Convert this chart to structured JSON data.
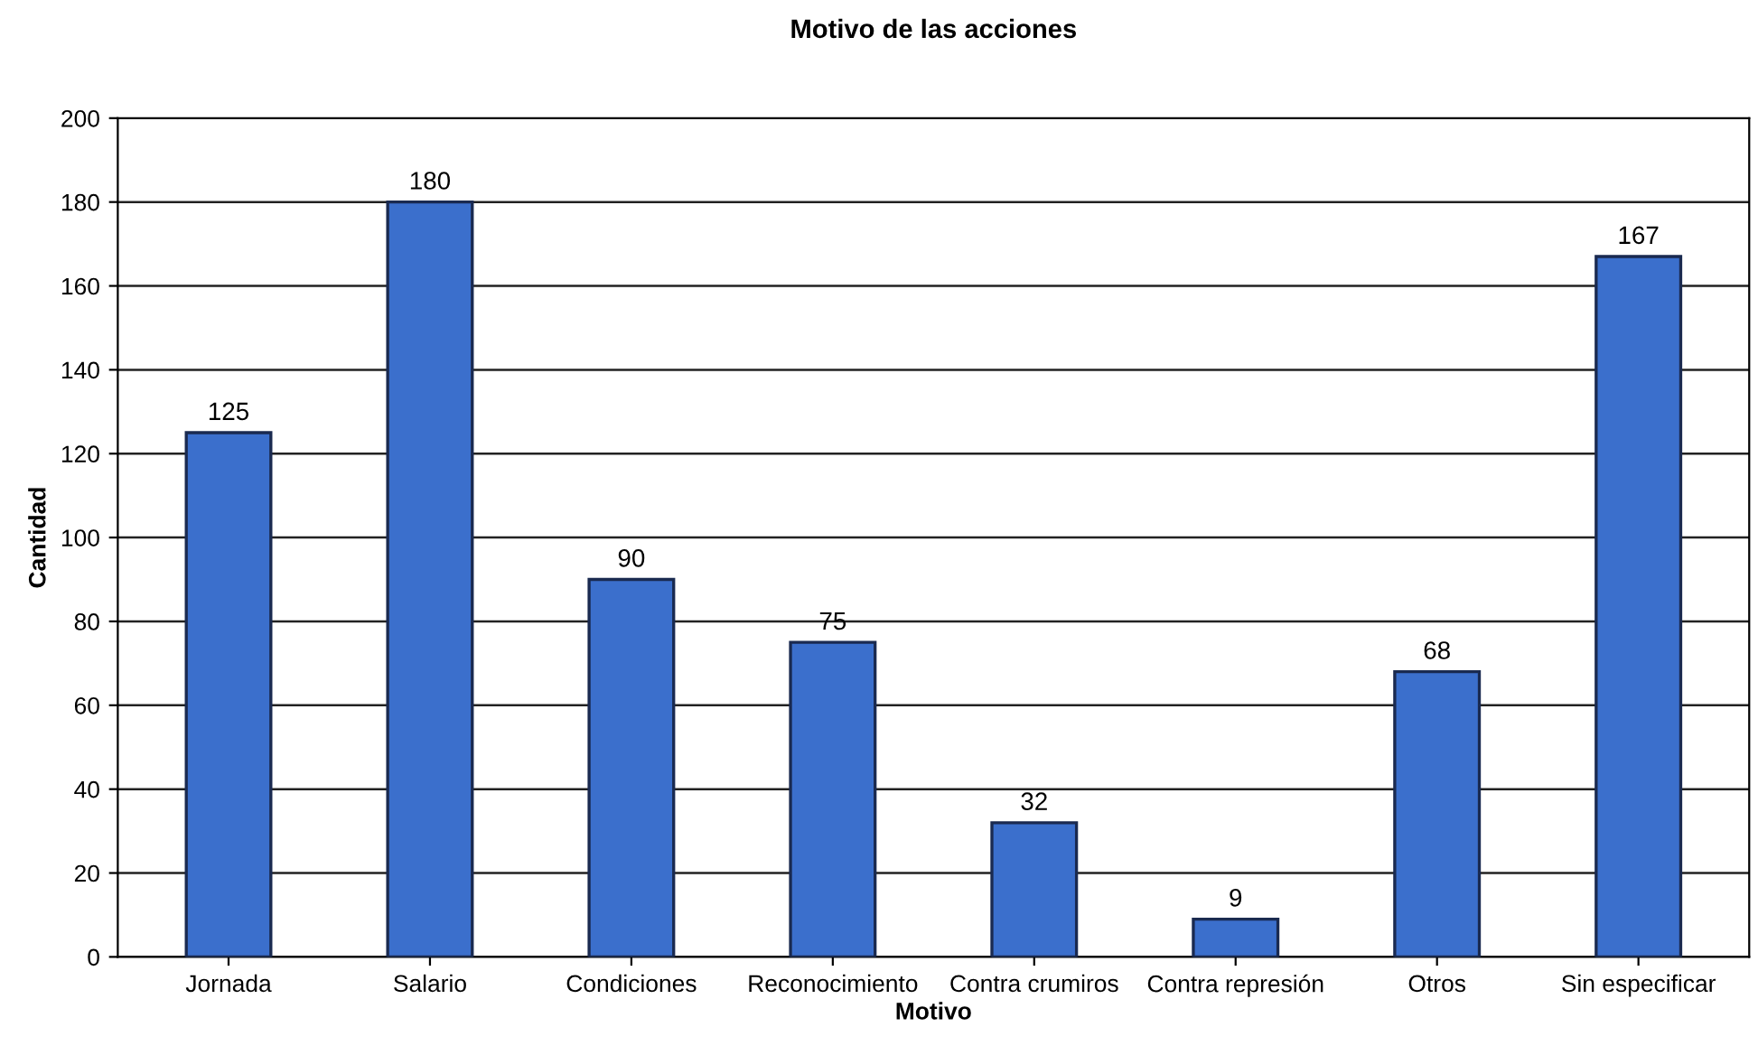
{
  "chart_data": {
    "type": "bar",
    "title": "Motivo de las acciones",
    "xlabel": "Motivo",
    "ylabel": "Cantidad",
    "categories": [
      "Jornada",
      "Salario",
      "Condiciones",
      "Reconocimiento",
      "Contra crumiros",
      "Contra represión",
      "Otros",
      "Sin especificar"
    ],
    "values": [
      125,
      180,
      90,
      75,
      32,
      9,
      68,
      167
    ],
    "color": "#3b6fcc",
    "ylim": [
      0,
      200
    ],
    "yticks": [
      0,
      20,
      40,
      60,
      80,
      100,
      120,
      140,
      160,
      180,
      200
    ],
    "grid": "y",
    "data_labels": true,
    "legend": false
  }
}
